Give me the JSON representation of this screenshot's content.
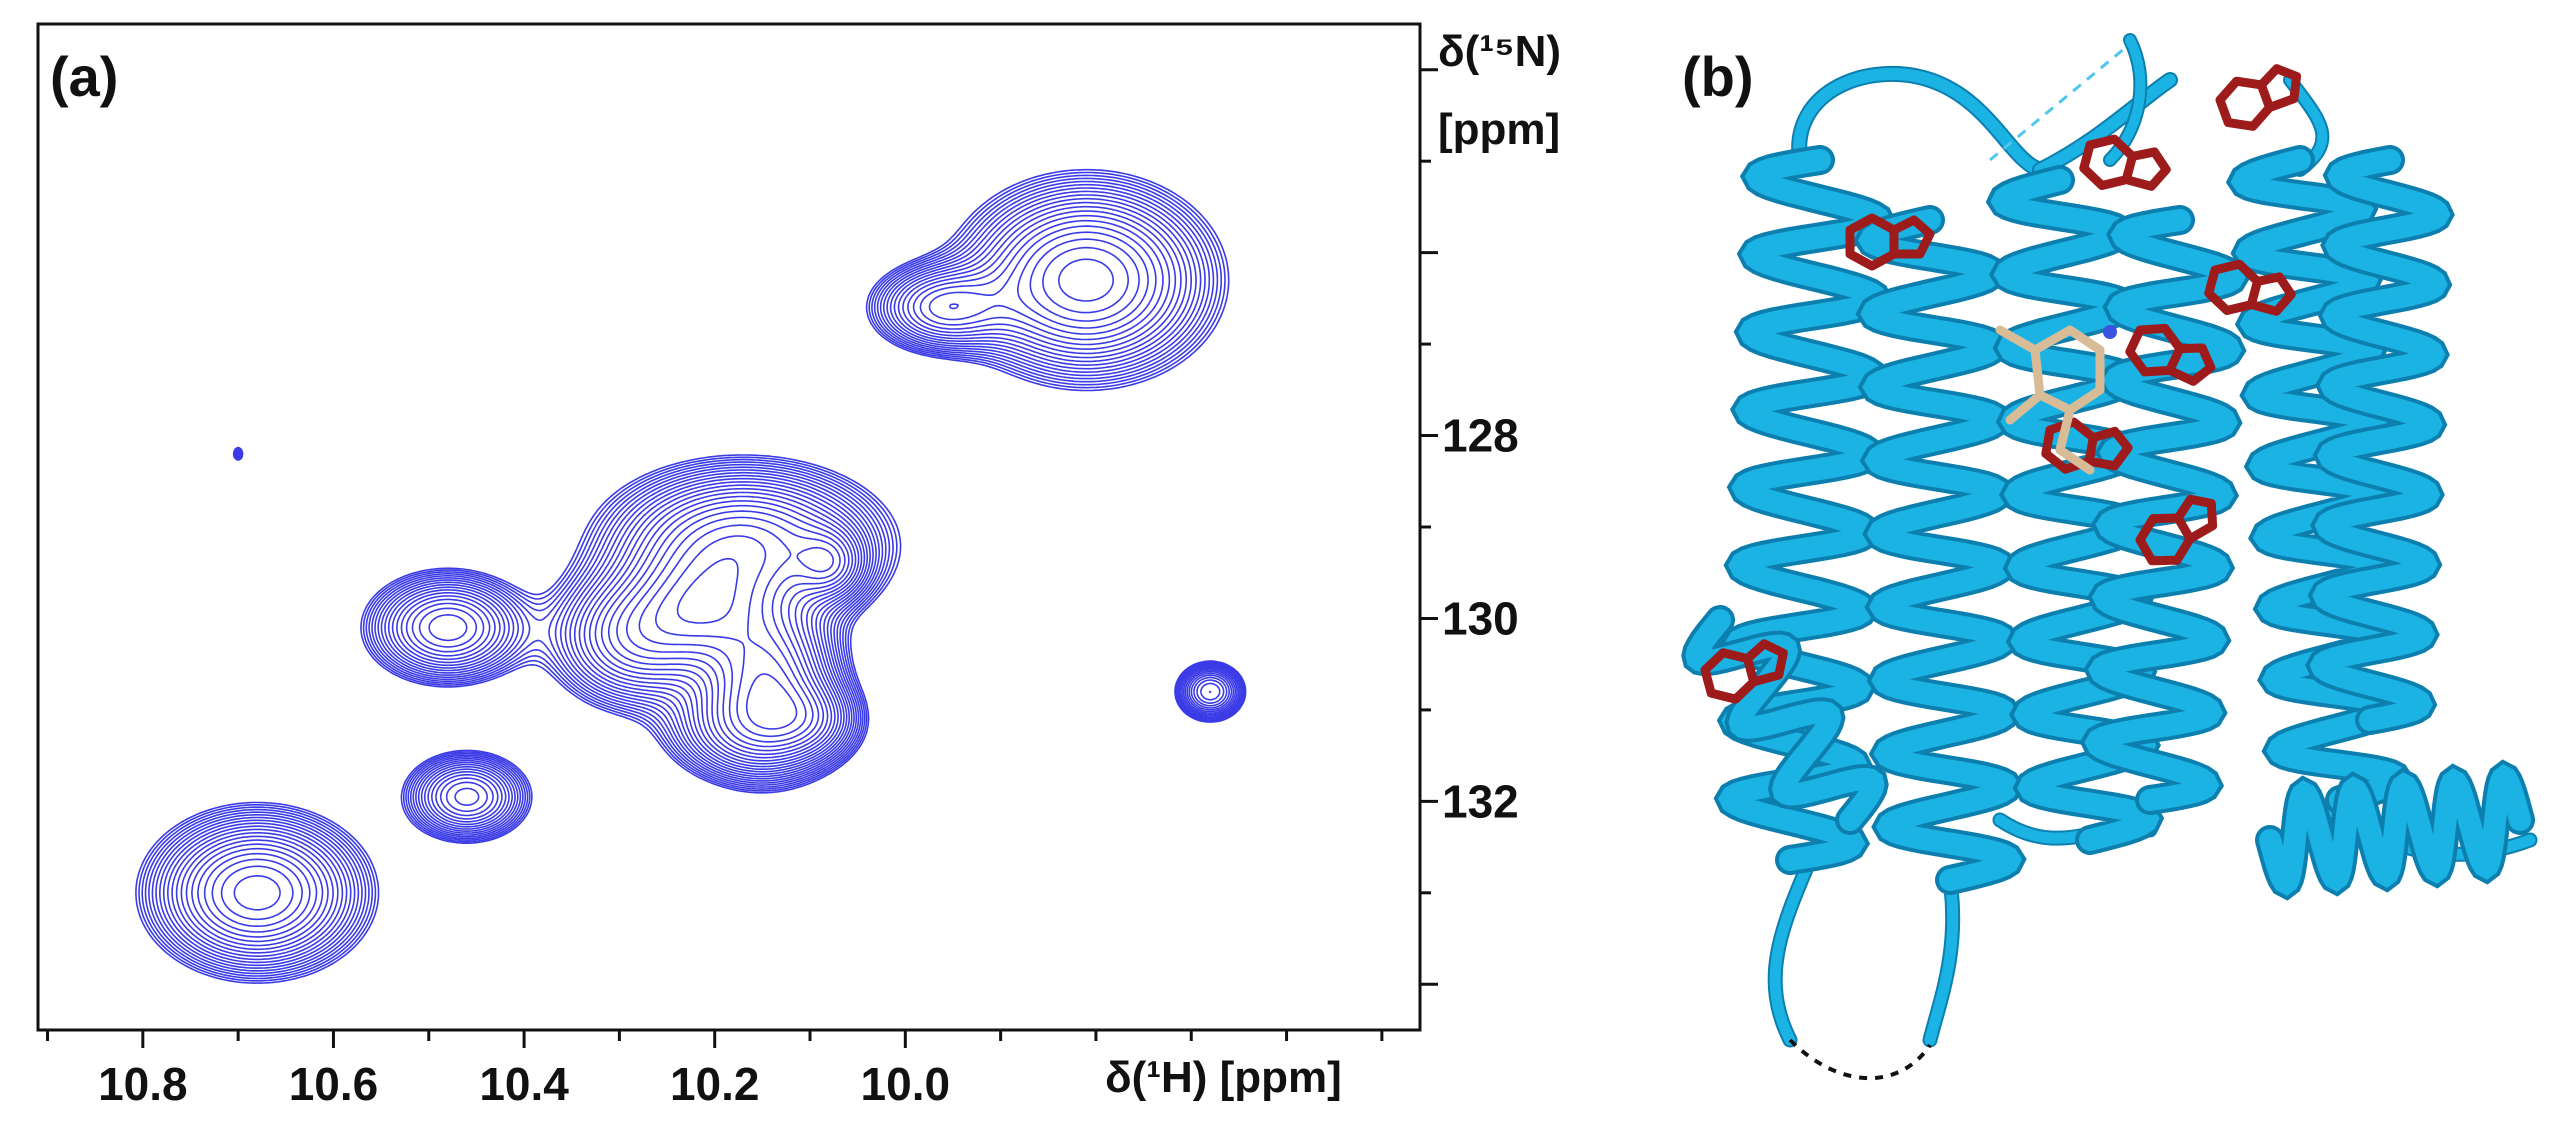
{
  "figure": {
    "panels": [
      {
        "label": "(a)"
      },
      {
        "label": "(b)"
      }
    ]
  },
  "chart_data": {
    "type": "contour",
    "xlabel": "δ(¹H) [ppm]",
    "ylabel": "δ(¹⁵N) [ppm]",
    "x_reversed": true,
    "y_reversed": true,
    "xlim": [
      10.91,
      9.46
    ],
    "ylim": [
      123.5,
      134.5
    ],
    "xticks": [
      10.8,
      10.6,
      10.4,
      10.2,
      10.0
    ],
    "yticks": [
      128,
      130,
      132
    ],
    "peaks": [
      {
        "x": 9.81,
        "y": 126.3,
        "wx": 0.068,
        "wy": 0.55,
        "h": 1.0
      },
      {
        "x": 9.96,
        "y": 126.6,
        "wx": 0.042,
        "wy": 0.27,
        "h": 0.55
      },
      {
        "x": 10.7,
        "y": 128.2,
        "wx": 0.004,
        "wy": 0.06,
        "h": 0.18
      },
      {
        "x": 10.17,
        "y": 129.2,
        "wx": 0.075,
        "wy": 0.45,
        "h": 1.0
      },
      {
        "x": 10.08,
        "y": 129.4,
        "wx": 0.022,
        "wy": 0.23,
        "h": 0.5
      },
      {
        "x": 10.21,
        "y": 129.9,
        "wx": 0.045,
        "wy": 0.38,
        "h": 0.7
      },
      {
        "x": 10.28,
        "y": 130.2,
        "wx": 0.05,
        "wy": 0.42,
        "h": 0.7
      },
      {
        "x": 10.145,
        "y": 130.65,
        "wx": 0.04,
        "wy": 0.5,
        "h": 1.0
      },
      {
        "x": 10.16,
        "y": 131.2,
        "wx": 0.05,
        "wy": 0.32,
        "h": 0.55
      },
      {
        "x": 10.1,
        "y": 131.1,
        "wx": 0.03,
        "wy": 0.25,
        "h": 0.35
      },
      {
        "x": 10.48,
        "y": 130.1,
        "wx": 0.045,
        "wy": 0.32,
        "h": 0.7
      },
      {
        "x": 9.68,
        "y": 130.8,
        "wx": 0.02,
        "wy": 0.18,
        "h": 0.5
      },
      {
        "x": 10.46,
        "y": 131.95,
        "wx": 0.035,
        "wy": 0.26,
        "h": 0.6
      },
      {
        "x": 10.68,
        "y": 133.0,
        "wx": 0.058,
        "wy": 0.45,
        "h": 1.0
      }
    ],
    "contour_color": "#3a3ae6"
  },
  "structure": {
    "helix_color": "#1bb3e3",
    "residue_color": "#9e1b1b",
    "ligand_color": "#d7bc97"
  }
}
